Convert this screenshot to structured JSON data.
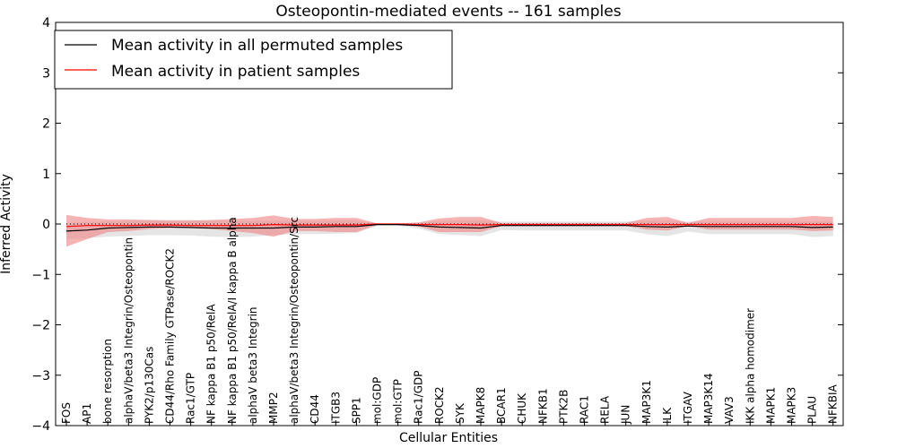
{
  "chart_data": {
    "type": "line",
    "title": "Osteopontin-mediated events -- 161 samples",
    "xlabel": "Cellular Entities",
    "ylabel": "Inferred Activity",
    "ylim": [
      -4,
      4
    ],
    "yticks": [
      -4,
      -3,
      -2,
      -1,
      0,
      1,
      2,
      3,
      4
    ],
    "legend_position": "top-left",
    "categories": [
      "FOS",
      "AP1",
      "bone resorption",
      "alphaV/beta3 Integrin/Osteopontin",
      "PYK2/p130Cas",
      "CD44/Rho Family GTPase/ROCK2",
      "Rac1/GTP",
      "NF kappa B1 p50/RelA",
      "NF kappa B1 p50/RelA/I kappa B alpha",
      "alphaV beta3 Integrin",
      "MMP2",
      "alphaV/beta3 Integrin/Osteopontin/Src",
      "CD44",
      "ITGB3",
      "SPP1",
      "mol:GDP",
      "mol:GTP",
      "Rac1/GDP",
      "ROCK2",
      "SYK",
      "MAPK8",
      "BCAR1",
      "CHUK",
      "NFKB1",
      "PTK2B",
      "RAC1",
      "RELA",
      "JUN",
      "MAP3K1",
      "ILK",
      "ITGAV",
      "MAP3K14",
      "VAV3",
      "IKK alpha homodimer",
      "MAPK1",
      "MAPK3",
      "PLAU",
      "NFKBIA"
    ],
    "series": [
      {
        "name": "Mean activity in all permuted samples",
        "color": "#000000",
        "values": [
          -0.14,
          -0.12,
          -0.08,
          -0.07,
          -0.06,
          -0.06,
          -0.07,
          -0.08,
          -0.08,
          -0.08,
          -0.08,
          -0.06,
          -0.06,
          -0.05,
          -0.05,
          -0.01,
          -0.01,
          -0.03,
          -0.06,
          -0.07,
          -0.08,
          -0.03,
          -0.03,
          -0.03,
          -0.03,
          -0.03,
          -0.03,
          -0.03,
          -0.05,
          -0.06,
          -0.04,
          -0.05,
          -0.05,
          -0.05,
          -0.05,
          -0.05,
          -0.07,
          -0.06
        ],
        "lower": [
          -0.3,
          -0.28,
          -0.25,
          -0.24,
          -0.22,
          -0.22,
          -0.23,
          -0.25,
          -0.26,
          -0.25,
          -0.22,
          -0.2,
          -0.2,
          -0.19,
          -0.18,
          -0.03,
          -0.03,
          -0.09,
          -0.2,
          -0.22,
          -0.24,
          -0.12,
          -0.13,
          -0.13,
          -0.13,
          -0.13,
          -0.13,
          -0.13,
          -0.2,
          -0.24,
          -0.15,
          -0.2,
          -0.2,
          -0.2,
          -0.2,
          -0.2,
          -0.26,
          -0.24
        ],
        "upper": [
          0.02,
          0.04,
          0.05,
          0.06,
          0.08,
          0.08,
          0.08,
          0.07,
          0.06,
          0.06,
          0.06,
          0.06,
          0.06,
          0.07,
          0.07,
          0.01,
          0.01,
          0.02,
          0.06,
          0.07,
          0.07,
          0.05,
          0.05,
          0.05,
          0.05,
          0.05,
          0.05,
          0.05,
          0.06,
          0.07,
          0.05,
          0.05,
          0.05,
          0.05,
          0.05,
          0.05,
          0.05,
          0.05
        ]
      },
      {
        "name": "Mean activity in patient samples",
        "color": "#ff0000",
        "fill": "#f08080",
        "values": [
          -0.05,
          -0.03,
          -0.03,
          -0.03,
          -0.02,
          -0.02,
          -0.03,
          -0.03,
          -0.03,
          -0.03,
          -0.01,
          -0.02,
          -0.02,
          -0.02,
          -0.02,
          0.0,
          0.0,
          -0.01,
          -0.01,
          -0.01,
          -0.02,
          -0.01,
          -0.01,
          -0.01,
          -0.01,
          -0.01,
          -0.01,
          -0.01,
          -0.01,
          -0.01,
          -0.01,
          -0.01,
          -0.01,
          -0.01,
          -0.01,
          -0.01,
          -0.01,
          -0.01
        ],
        "lower": [
          -0.45,
          -0.3,
          -0.16,
          -0.14,
          -0.1,
          -0.08,
          -0.08,
          -0.1,
          -0.14,
          -0.18,
          -0.25,
          -0.14,
          -0.14,
          -0.16,
          -0.16,
          -0.02,
          -0.02,
          -0.05,
          -0.16,
          -0.16,
          -0.16,
          -0.04,
          -0.04,
          -0.04,
          -0.04,
          -0.04,
          -0.04,
          -0.04,
          -0.11,
          -0.13,
          -0.04,
          -0.11,
          -0.11,
          -0.11,
          -0.11,
          -0.11,
          -0.14,
          -0.13
        ],
        "upper": [
          0.18,
          0.12,
          0.09,
          0.09,
          0.08,
          0.07,
          0.07,
          0.08,
          0.1,
          0.12,
          0.17,
          0.1,
          0.1,
          0.12,
          0.12,
          0.01,
          0.01,
          0.03,
          0.11,
          0.14,
          0.14,
          0.02,
          0.02,
          0.02,
          0.02,
          0.02,
          0.02,
          0.02,
          0.12,
          0.14,
          0.02,
          0.12,
          0.12,
          0.12,
          0.12,
          0.12,
          0.16,
          0.14
        ]
      }
    ],
    "reference_line": {
      "y": 0,
      "style": "dotted"
    }
  }
}
